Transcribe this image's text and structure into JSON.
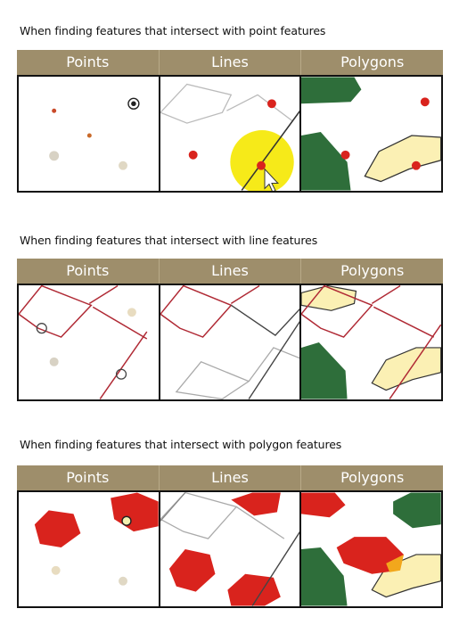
{
  "sections": [
    {
      "title": "When finding features that intersect with point features",
      "columns": [
        "Points",
        "Lines",
        "Polygons"
      ]
    },
    {
      "title": "When finding features that intersect with line features",
      "columns": [
        "Points",
        "Lines",
        "Polygons"
      ]
    },
    {
      "title": "When finding features that intersect with polygon features",
      "columns": [
        "Points",
        "Lines",
        "Polygons"
      ]
    }
  ],
  "colors": {
    "header": "#9e8e6b",
    "selected_red": "#d9231d",
    "point_gray": "#d8d2c4",
    "polygon_green": "#2e6e3a",
    "polygon_yellow": "#fbf0b4",
    "line_gray": "#aaaaaa",
    "highlight_yellow": "#f5e800"
  },
  "icons": [
    "mouse-pointer-icon",
    "click-highlight"
  ]
}
